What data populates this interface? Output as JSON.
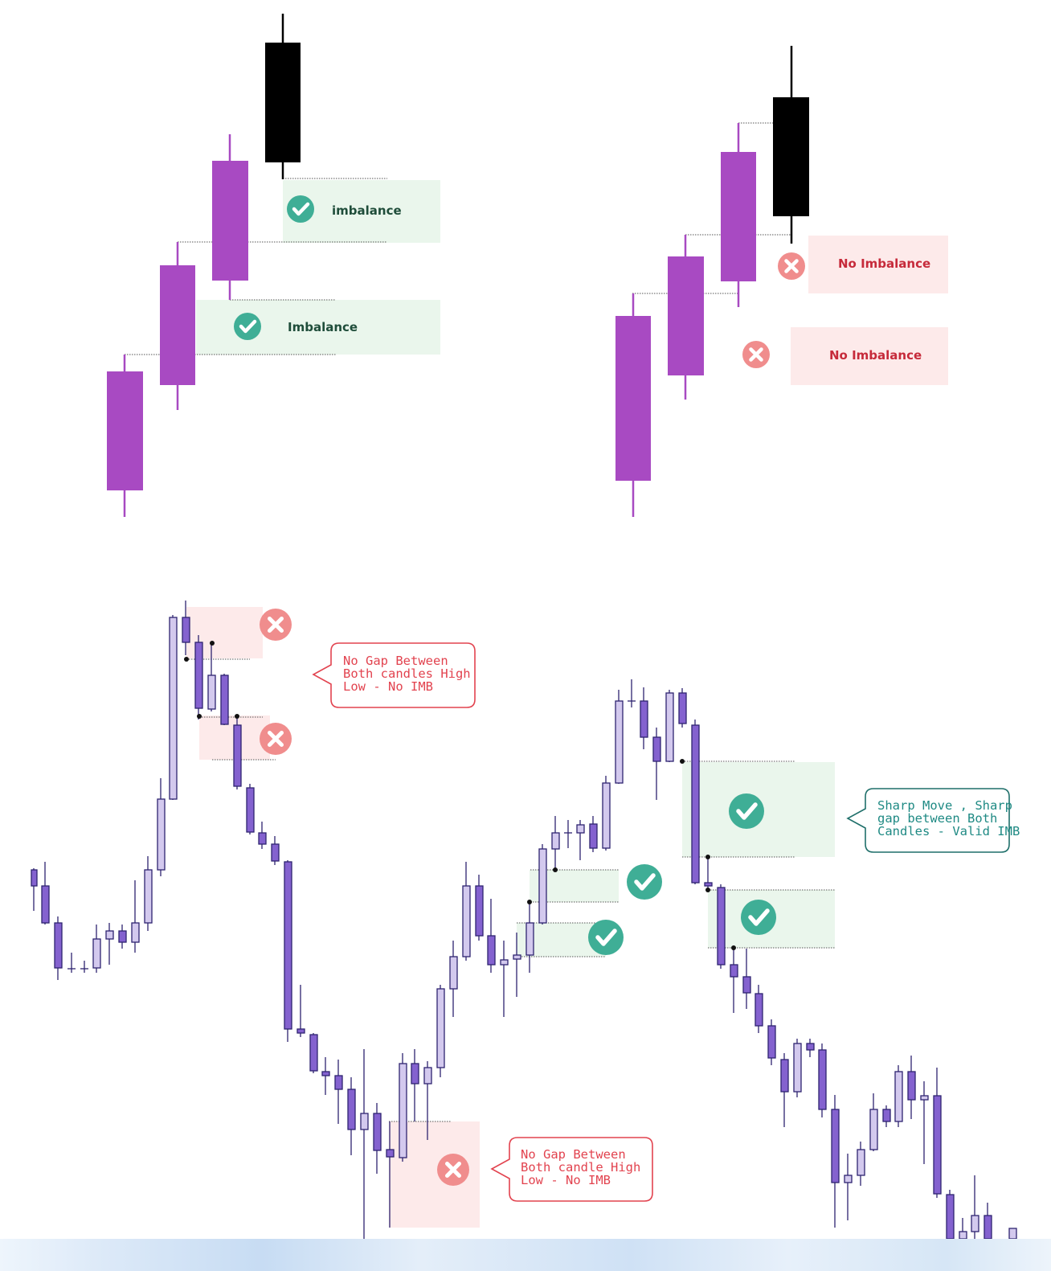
{
  "labels": {
    "imbalance_top": "imbalance",
    "imbalance_bottom": "Imbalance",
    "no_imbalance_top": "No Imbalance",
    "no_imbalance_bottom": "No Imbalance"
  },
  "callouts": {
    "top_left": "No Gap Between\nBoth candles High\nLow - No IMB",
    "bottom_middle": "No Gap Between\nBoth candle High\nLow - No IMB",
    "right": "Sharp Move , Sharp\ngap between Both\nCandles - Valid IMB"
  },
  "colors": {
    "purple_body": "#a84ac2",
    "black_body": "#000000",
    "green_zone": "#eaf6ec",
    "red_zone": "#fdeaea",
    "check_badge": "#3fae96",
    "cross_badge": "#f08d8d",
    "bull_candle": "#d3c9ee",
    "bear_candle": "#8462cf",
    "candle_outline": "#2e2470",
    "callout_red": "#e2434f",
    "callout_teal": "#1f8a84"
  },
  "icons": [
    "check-circle-icon",
    "cross-circle-icon"
  ]
}
